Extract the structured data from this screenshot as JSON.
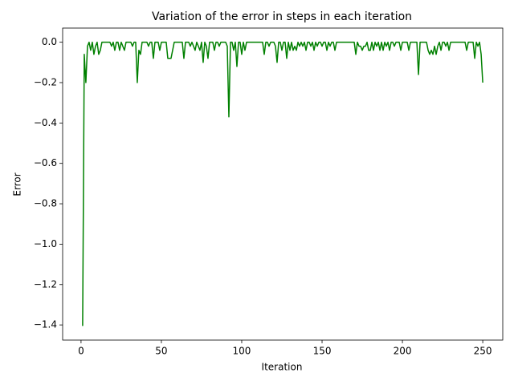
{
  "chart_data": {
    "type": "line",
    "title": "Variation of the error in steps in each iteration",
    "x_label": "Iteration",
    "y_label": "Error",
    "x": [
      1,
      2,
      3,
      4,
      5,
      6,
      7,
      8,
      9,
      10,
      11,
      12,
      13,
      14,
      15,
      16,
      17,
      18,
      19,
      20,
      21,
      22,
      23,
      24,
      25,
      26,
      27,
      28,
      29,
      30,
      31,
      32,
      33,
      34,
      35,
      36,
      37,
      38,
      39,
      40,
      41,
      42,
      43,
      44,
      45,
      46,
      47,
      48,
      49,
      50,
      51,
      52,
      53,
      54,
      55,
      56,
      57,
      58,
      59,
      60,
      61,
      62,
      63,
      64,
      65,
      66,
      67,
      68,
      69,
      70,
      71,
      72,
      73,
      74,
      75,
      76,
      77,
      78,
      79,
      80,
      81,
      82,
      83,
      84,
      85,
      86,
      87,
      88,
      89,
      90,
      91,
      92,
      93,
      94,
      95,
      96,
      97,
      98,
      99,
      100,
      101,
      102,
      103,
      104,
      105,
      106,
      107,
      108,
      109,
      110,
      111,
      112,
      113,
      114,
      115,
      116,
      117,
      118,
      119,
      120,
      121,
      122,
      123,
      124,
      125,
      126,
      127,
      128,
      129,
      130,
      131,
      132,
      133,
      134,
      135,
      136,
      137,
      138,
      139,
      140,
      141,
      142,
      143,
      144,
      145,
      146,
      147,
      148,
      149,
      150,
      151,
      152,
      153,
      154,
      155,
      156,
      157,
      158,
      159,
      160,
      161,
      162,
      163,
      164,
      165,
      166,
      167,
      168,
      169,
      170,
      171,
      172,
      173,
      174,
      175,
      176,
      177,
      178,
      179,
      180,
      181,
      182,
      183,
      184,
      185,
      186,
      187,
      188,
      189,
      190,
      191,
      192,
      193,
      194,
      195,
      196,
      197,
      198,
      199,
      200,
      201,
      202,
      203,
      204,
      205,
      206,
      207,
      208,
      209,
      210,
      211,
      212,
      213,
      214,
      215,
      216,
      217,
      218,
      219,
      220,
      221,
      222,
      223,
      224,
      225,
      226,
      227,
      228,
      229,
      230,
      231,
      232,
      233,
      234,
      235,
      236,
      237,
      238,
      239,
      240,
      241,
      242,
      243,
      244,
      245,
      246,
      247,
      248,
      249,
      250
    ],
    "series": [
      {
        "name": "Error",
        "color": "#008000",
        "values": [
          -1.405,
          -0.06,
          -0.2,
          -0.02,
          0,
          -0.04,
          0,
          -0.06,
          -0.02,
          0,
          -0.06,
          -0.04,
          0,
          0,
          0,
          0,
          0,
          0,
          -0.02,
          0,
          -0.04,
          0,
          0,
          -0.04,
          0,
          -0.02,
          -0.04,
          0,
          0,
          0,
          0,
          -0.02,
          0,
          0,
          -0.2,
          -0.04,
          -0.06,
          0,
          0,
          0,
          0,
          -0.02,
          0,
          0,
          -0.08,
          0,
          0,
          0,
          -0.04,
          0,
          0,
          0,
          0,
          -0.08,
          -0.08,
          -0.08,
          -0.04,
          0,
          0,
          0,
          0,
          0,
          0,
          -0.08,
          0,
          0,
          0,
          -0.02,
          0,
          -0.02,
          -0.04,
          0,
          -0.02,
          -0.04,
          0,
          -0.1,
          0,
          -0.02,
          -0.08,
          0,
          0,
          0,
          -0.04,
          0,
          0,
          -0.02,
          0,
          0,
          0,
          0,
          -0.02,
          -0.37,
          0,
          0,
          -0.04,
          0,
          -0.12,
          0,
          0,
          -0.06,
          0,
          -0.04,
          0,
          0,
          0,
          0,
          0,
          0,
          0,
          0,
          0,
          0,
          0,
          -0.06,
          0,
          0,
          -0.02,
          0,
          0,
          0,
          -0.02,
          -0.1,
          0,
          0,
          -0.04,
          0,
          0,
          -0.08,
          0,
          -0.04,
          0,
          -0.04,
          -0.02,
          -0.04,
          0,
          -0.02,
          0,
          -0.02,
          0,
          -0.04,
          0,
          0,
          -0.02,
          0,
          -0.04,
          0,
          -0.02,
          0,
          0,
          -0.02,
          0,
          0,
          -0.04,
          0,
          -0.02,
          0,
          0,
          -0.04,
          0,
          0,
          0,
          0,
          0,
          0,
          0,
          0,
          0,
          0,
          0,
          0,
          -0.06,
          0,
          -0.02,
          -0.02,
          -0.04,
          -0.02,
          -0.02,
          0,
          -0.04,
          -0.04,
          0,
          -0.04,
          0,
          -0.02,
          0,
          -0.04,
          0,
          -0.04,
          0,
          -0.02,
          0,
          -0.04,
          0,
          0,
          -0.02,
          0,
          0,
          0,
          -0.04,
          0,
          0,
          0,
          0,
          -0.04,
          0,
          0,
          0,
          0,
          0,
          -0.16,
          0,
          0,
          0,
          0,
          0,
          -0.04,
          -0.06,
          -0.04,
          -0.06,
          -0.02,
          -0.06,
          -0.02,
          0,
          -0.04,
          0,
          0,
          -0.02,
          0,
          -0.04,
          0,
          0,
          0,
          0,
          0,
          0,
          0,
          0,
          0,
          0,
          -0.04,
          0,
          0,
          0,
          0,
          -0.08,
          0,
          -0.02,
          0,
          -0.06,
          -0.2
        ]
      }
    ],
    "xlim": [
      -11.45,
      262.45
    ],
    "xticks": [
      0,
      50,
      100,
      150,
      200,
      250
    ],
    "ylim": [
      -1.475,
      0.07
    ],
    "yticks": [
      {
        "value": 0,
        "label": "0.0"
      },
      {
        "value": -0.2,
        "label": "−0.2"
      },
      {
        "value": -0.4,
        "label": "−0.4"
      },
      {
        "value": -0.6,
        "label": "−0.6"
      },
      {
        "value": -0.8,
        "label": "−0.8"
      },
      {
        "value": -1.0,
        "label": "−1.0"
      },
      {
        "value": -1.2,
        "label": "−1.2"
      },
      {
        "value": -1.4,
        "label": "−1.4"
      }
    ]
  }
}
